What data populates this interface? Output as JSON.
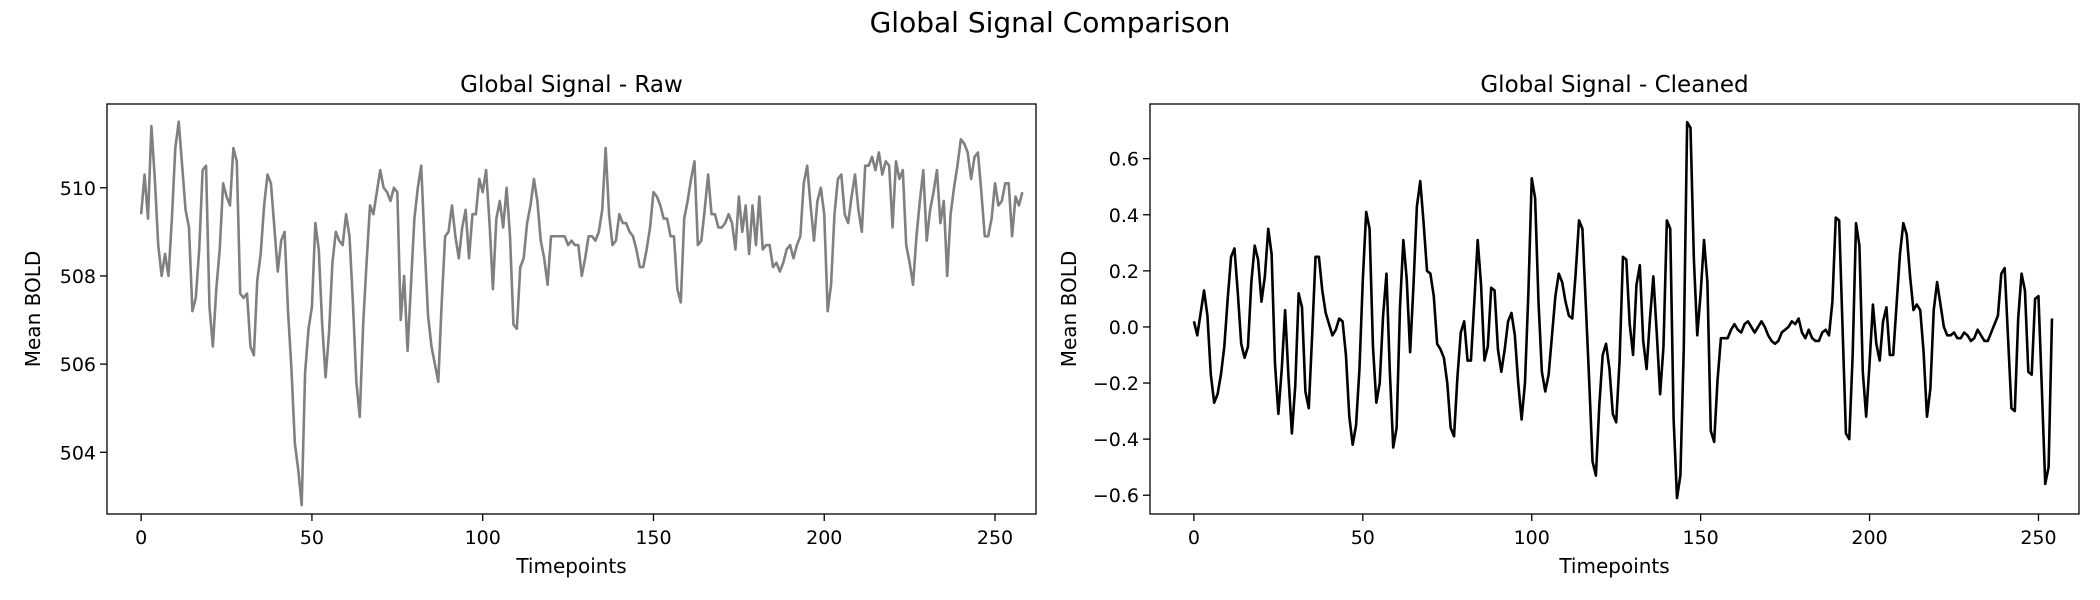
{
  "figure_title": "Global Signal Comparison",
  "chart_data": [
    {
      "type": "line",
      "title": "Global Signal - Raw",
      "xlabel": "Timepoints",
      "ylabel": "Mean BOLD",
      "xlim": [
        -10,
        262
      ],
      "ylim": [
        502.6,
        511.9
      ],
      "xticks": [
        0,
        50,
        100,
        150,
        200,
        250
      ],
      "yticks": [
        504,
        506,
        508,
        510
      ],
      "color": "#808080",
      "series": [
        {
          "name": "Raw",
          "values": [
            509.4,
            510.3,
            509.3,
            511.4,
            510.2,
            508.7,
            508.0,
            508.5,
            508.0,
            509.3,
            510.9,
            511.5,
            510.5,
            509.5,
            509.1,
            507.2,
            507.5,
            508.6,
            510.4,
            510.5,
            507.3,
            506.4,
            507.7,
            508.6,
            510.1,
            509.8,
            509.6,
            510.9,
            510.6,
            507.6,
            507.5,
            507.6,
            506.4,
            506.2,
            507.9,
            508.5,
            509.6,
            510.3,
            510.1,
            509.1,
            508.1,
            508.8,
            509.0,
            507.2,
            505.9,
            504.2,
            503.6,
            502.8,
            505.8,
            506.8,
            507.3,
            509.2,
            508.6,
            506.9,
            505.7,
            506.7,
            508.3,
            509.0,
            508.8,
            508.7,
            509.4,
            508.9,
            507.4,
            505.6,
            504.8,
            506.9,
            508.3,
            509.6,
            509.4,
            509.9,
            510.4,
            510.0,
            509.9,
            509.7,
            510.0,
            509.9,
            507.0,
            508.0,
            506.3,
            507.8,
            509.3,
            510.0,
            510.5,
            508.7,
            507.1,
            506.4,
            506.0,
            505.6,
            507.4,
            508.9,
            509.0,
            509.6,
            508.9,
            508.4,
            509.1,
            509.5,
            508.4,
            509.4,
            509.4,
            510.2,
            509.9,
            510.4,
            509.2,
            507.7,
            509.3,
            509.7,
            509.1,
            510.0,
            508.9,
            506.9,
            506.8,
            508.2,
            508.4,
            509.2,
            509.6,
            510.2,
            509.7,
            508.8,
            508.4,
            507.8,
            508.9,
            508.9,
            508.9,
            508.9,
            508.9,
            508.7,
            508.8,
            508.7,
            508.7,
            508.0,
            508.4,
            508.9,
            508.9,
            508.8,
            509.0,
            509.5,
            510.9,
            509.4,
            508.7,
            508.8,
            509.4,
            509.2,
            509.2,
            509.0,
            508.9,
            508.6,
            508.2,
            508.2,
            508.6,
            509.1,
            509.9,
            509.8,
            509.6,
            509.3,
            509.3,
            508.9,
            508.9,
            507.7,
            507.4,
            509.3,
            509.7,
            510.2,
            510.6,
            508.7,
            508.8,
            509.5,
            510.3,
            509.4,
            509.4,
            509.1,
            509.1,
            509.2,
            509.4,
            509.2,
            508.6,
            509.8,
            509.0,
            509.6,
            508.5,
            509.6,
            508.7,
            509.8,
            508.6,
            508.7,
            508.7,
            508.2,
            508.3,
            508.1,
            508.3,
            508.6,
            508.7,
            508.4,
            508.7,
            508.9,
            510.1,
            510.5,
            509.6,
            508.8,
            509.7,
            510.0,
            509.4,
            507.2,
            507.8,
            509.4,
            510.2,
            510.3,
            509.4,
            509.2,
            509.8,
            510.3,
            509.5,
            509.0,
            510.5,
            510.5,
            510.7,
            510.4,
            510.8,
            510.3,
            510.6,
            510.5,
            509.1,
            510.6,
            510.2,
            510.4,
            508.7,
            508.3,
            507.8,
            508.9,
            509.7,
            510.4,
            508.8,
            509.5,
            509.9,
            510.4,
            509.2,
            509.7,
            508.0,
            509.4,
            510.0,
            510.5,
            511.1,
            511.0,
            510.8,
            510.2,
            510.7,
            510.8,
            509.9,
            508.9,
            508.9,
            509.3,
            510.1,
            509.6,
            509.7,
            510.1,
            510.1,
            508.9,
            509.8,
            509.6,
            509.9
          ]
        }
      ]
    },
    {
      "type": "line",
      "title": "Global Signal - Cleaned",
      "xlabel": "Timepoints",
      "ylabel": "Mean BOLD",
      "xlim": [
        -13,
        262
      ],
      "ylim": [
        -0.667,
        0.795
      ],
      "xticks": [
        0,
        50,
        100,
        150,
        200,
        250
      ],
      "yticks": [
        -0.6,
        -0.4,
        -0.2,
        0.0,
        0.2,
        0.4,
        0.6
      ],
      "ytick_labels": [
        "−0.6",
        "−0.4",
        "−0.2",
        "0.0",
        "0.2",
        "0.4",
        "0.6"
      ],
      "color": "#000000",
      "series": [
        {
          "name": "Cleaned",
          "values": [
            0.02,
            -0.03,
            0.05,
            0.13,
            0.04,
            -0.17,
            -0.27,
            -0.24,
            -0.17,
            -0.07,
            0.1,
            0.25,
            0.28,
            0.12,
            -0.06,
            -0.11,
            -0.07,
            0.16,
            0.29,
            0.24,
            0.09,
            0.18,
            0.35,
            0.26,
            -0.13,
            -0.31,
            -0.15,
            0.06,
            -0.18,
            -0.38,
            -0.21,
            0.12,
            0.07,
            -0.23,
            -0.29,
            -0.03,
            0.25,
            0.25,
            0.13,
            0.05,
            0.01,
            -0.03,
            -0.01,
            0.03,
            0.02,
            -0.1,
            -0.32,
            -0.42,
            -0.35,
            -0.15,
            0.17,
            0.41,
            0.35,
            -0.07,
            -0.27,
            -0.2,
            0.04,
            0.19,
            -0.16,
            -0.43,
            -0.36,
            0.07,
            0.31,
            0.17,
            -0.09,
            0.15,
            0.43,
            0.52,
            0.37,
            0.2,
            0.19,
            0.11,
            -0.06,
            -0.08,
            -0.11,
            -0.2,
            -0.36,
            -0.39,
            -0.18,
            -0.02,
            0.02,
            -0.12,
            -0.12,
            0.09,
            0.31,
            0.15,
            -0.12,
            -0.07,
            0.14,
            0.13,
            -0.08,
            -0.16,
            -0.08,
            0.02,
            0.05,
            -0.03,
            -0.2,
            -0.33,
            -0.2,
            0.12,
            0.53,
            0.46,
            0.09,
            -0.16,
            -0.23,
            -0.17,
            -0.03,
            0.11,
            0.19,
            0.16,
            0.09,
            0.04,
            0.03,
            0.19,
            0.38,
            0.35,
            0.08,
            -0.19,
            -0.48,
            -0.53,
            -0.28,
            -0.1,
            -0.06,
            -0.15,
            -0.31,
            -0.34,
            -0.12,
            0.25,
            0.24,
            0.01,
            -0.1,
            0.15,
            0.22,
            -0.05,
            -0.15,
            0.03,
            0.18,
            -0.02,
            -0.24,
            -0.07,
            0.38,
            0.35,
            -0.33,
            -0.61,
            -0.53,
            -0.08,
            0.73,
            0.71,
            0.24,
            -0.03,
            0.12,
            0.31,
            0.16,
            -0.37,
            -0.41,
            -0.19,
            -0.04,
            -0.04,
            -0.04,
            -0.01,
            0.01,
            -0.01,
            -0.02,
            0.01,
            0.02,
            0.0,
            -0.02,
            0.0,
            0.02,
            0.0,
            -0.03,
            -0.05,
            -0.06,
            -0.05,
            -0.02,
            -0.01,
            0.0,
            0.02,
            0.01,
            0.03,
            -0.02,
            -0.04,
            -0.01,
            -0.04,
            -0.05,
            -0.05,
            -0.02,
            -0.01,
            -0.03,
            0.09,
            0.39,
            0.38,
            0.0,
            -0.38,
            -0.4,
            -0.1,
            0.37,
            0.29,
            -0.16,
            -0.32,
            -0.13,
            0.08,
            -0.06,
            -0.12,
            0.02,
            0.07,
            -0.1,
            -0.1,
            0.08,
            0.26,
            0.37,
            0.33,
            0.18,
            0.06,
            0.08,
            0.06,
            -0.09,
            -0.32,
            -0.22,
            0.06,
            0.16,
            0.08,
            0.0,
            -0.03,
            -0.03,
            -0.02,
            -0.04,
            -0.04,
            -0.02,
            -0.03,
            -0.05,
            -0.04,
            -0.01,
            -0.03,
            -0.05,
            -0.05,
            -0.02,
            0.01,
            0.04,
            0.19,
            0.21,
            -0.04,
            -0.29,
            -0.3,
            0.03,
            0.19,
            0.13,
            -0.16,
            -0.17,
            0.1,
            0.11,
            -0.22,
            -0.56,
            -0.5,
            0.03
          ]
        }
      ]
    }
  ]
}
